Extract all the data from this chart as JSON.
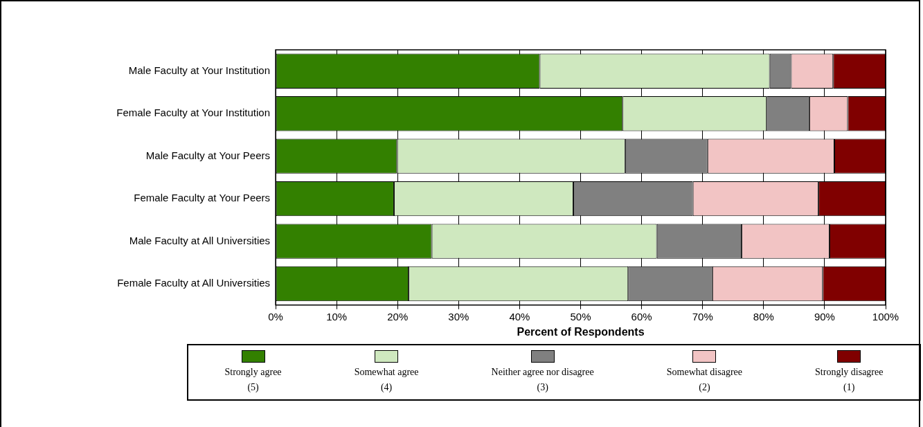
{
  "chart_data": {
    "type": "bar",
    "orientation": "horizontal",
    "stacked": true,
    "xlabel": "Percent of Respondents",
    "categories": [
      "Male Faculty at Your Institution",
      "Female Faculty at Your Institution",
      "Male Faculty at Your Peers",
      "Female Faculty at Your Peers",
      "Male Faculty at All Universities",
      "Female Faculty at All Universities"
    ],
    "series": [
      {
        "name": "Strongly agree\n(5)",
        "color": "#338000",
        "values": [
          43.3,
          56.9,
          19.9,
          19.4,
          25.6,
          21.8
        ]
      },
      {
        "name": "Somewhat agree\n(4)",
        "color": "#cfe8bf",
        "values": [
          37.7,
          23.6,
          37.4,
          29.4,
          36.9,
          36.0
        ]
      },
      {
        "name": "Neither agree nor disagree\n(3)",
        "color": "#808080",
        "values": [
          3.5,
          7.0,
          13.5,
          19.6,
          13.9,
          13.8
        ]
      },
      {
        "name": "Somewhat disagree\n(2)",
        "color": "#f2c4c4",
        "values": [
          6.9,
          6.3,
          20.8,
          20.6,
          14.4,
          18.1
        ]
      },
      {
        "name": "Strongly disagree\n(1)",
        "color": "#800000",
        "values": [
          8.6,
          6.2,
          8.4,
          11.0,
          9.2,
          10.3
        ]
      }
    ],
    "xlim": [
      0,
      100
    ],
    "xticks": [
      {
        "value": 0,
        "label": "0%"
      },
      {
        "value": 10,
        "label": "10%"
      },
      {
        "value": 20,
        "label": "20%"
      },
      {
        "value": 30,
        "label": "30%"
      },
      {
        "value": 40,
        "label": "40%"
      },
      {
        "value": 50,
        "label": "50%"
      },
      {
        "value": 60,
        "label": "60%"
      },
      {
        "value": 70,
        "label": "70%"
      },
      {
        "value": 80,
        "label": "80%"
      },
      {
        "value": 90,
        "label": "90%"
      },
      {
        "value": 100,
        "label": "100%"
      }
    ],
    "grid": "x",
    "legend": "bottom"
  }
}
